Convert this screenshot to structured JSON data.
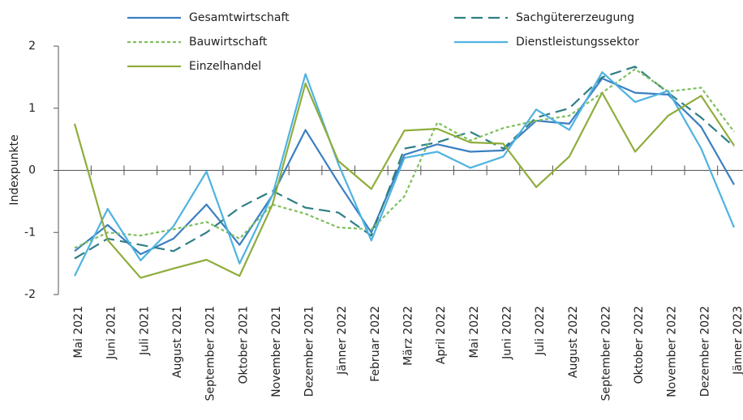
{
  "chart_data": {
    "type": "line",
    "y_label": "Indexpunkte",
    "categories": [
      "Mai 2021",
      "Juni 2021",
      "Juli 2021",
      "August 2021",
      "September 2021",
      "Oktober 2021",
      "November 2021",
      "Dezember 2021",
      "Jänner 2022",
      "Februar 2022",
      "März 2022",
      "April 2022",
      "Mai 2022",
      "Juni 2022",
      "Juli 2022",
      "August 2022",
      "September 2022",
      "Oktober 2022",
      "November 2022",
      "Dezember 2022",
      "Jänner 2023"
    ],
    "series": [
      {
        "name": "Gesamtwirtschaft",
        "color": "#3a7fc1",
        "style": "solid",
        "values": [
          -1.3,
          -0.88,
          -1.35,
          -1.1,
          -0.55,
          -1.2,
          -0.4,
          0.65,
          -0.2,
          -1.0,
          0.25,
          0.42,
          0.3,
          0.32,
          0.8,
          0.75,
          1.48,
          1.25,
          1.22,
          0.7,
          -0.23
        ]
      },
      {
        "name": "Sachgütererzeugung",
        "color": "#2f7f86",
        "style": "dashed",
        "values": [
          -1.42,
          -1.1,
          -1.2,
          -1.3,
          -1.0,
          -0.6,
          -0.33,
          -0.6,
          -0.68,
          -1.05,
          0.35,
          0.45,
          0.62,
          0.35,
          0.85,
          1.0,
          1.5,
          1.67,
          1.25,
          0.85,
          0.38
        ]
      },
      {
        "name": "Bauwirtschaft",
        "color": "#7fbf5f",
        "style": "dotted",
        "values": [
          -1.25,
          -1.0,
          -1.05,
          -0.95,
          -0.83,
          -1.1,
          -0.55,
          -0.7,
          -0.92,
          -0.95,
          -0.42,
          0.77,
          0.48,
          0.68,
          0.8,
          0.88,
          1.25,
          1.63,
          1.27,
          1.33,
          0.62
        ]
      },
      {
        "name": "Dienstleistungssektor",
        "color": "#4fb3e0",
        "style": "solid",
        "values": [
          -1.7,
          -0.62,
          -1.45,
          -0.9,
          -0.02,
          -1.5,
          -0.4,
          1.55,
          0.1,
          -1.13,
          0.2,
          0.3,
          0.04,
          0.22,
          0.98,
          0.65,
          1.58,
          1.1,
          1.28,
          0.35,
          -0.92
        ]
      },
      {
        "name": "Einzelhandel",
        "color": "#8fad3c",
        "style": "solid",
        "values": [
          0.75,
          -1.12,
          -1.73,
          -1.58,
          -1.44,
          -1.7,
          -0.55,
          1.4,
          0.15,
          -0.3,
          0.64,
          0.67,
          0.45,
          0.43,
          -0.27,
          0.22,
          1.25,
          0.3,
          0.88,
          1.2,
          0.4
        ]
      }
    ],
    "ylim": [
      -2,
      2
    ],
    "yticks": [
      -2,
      -1,
      0,
      1,
      2
    ],
    "grid": false
  }
}
